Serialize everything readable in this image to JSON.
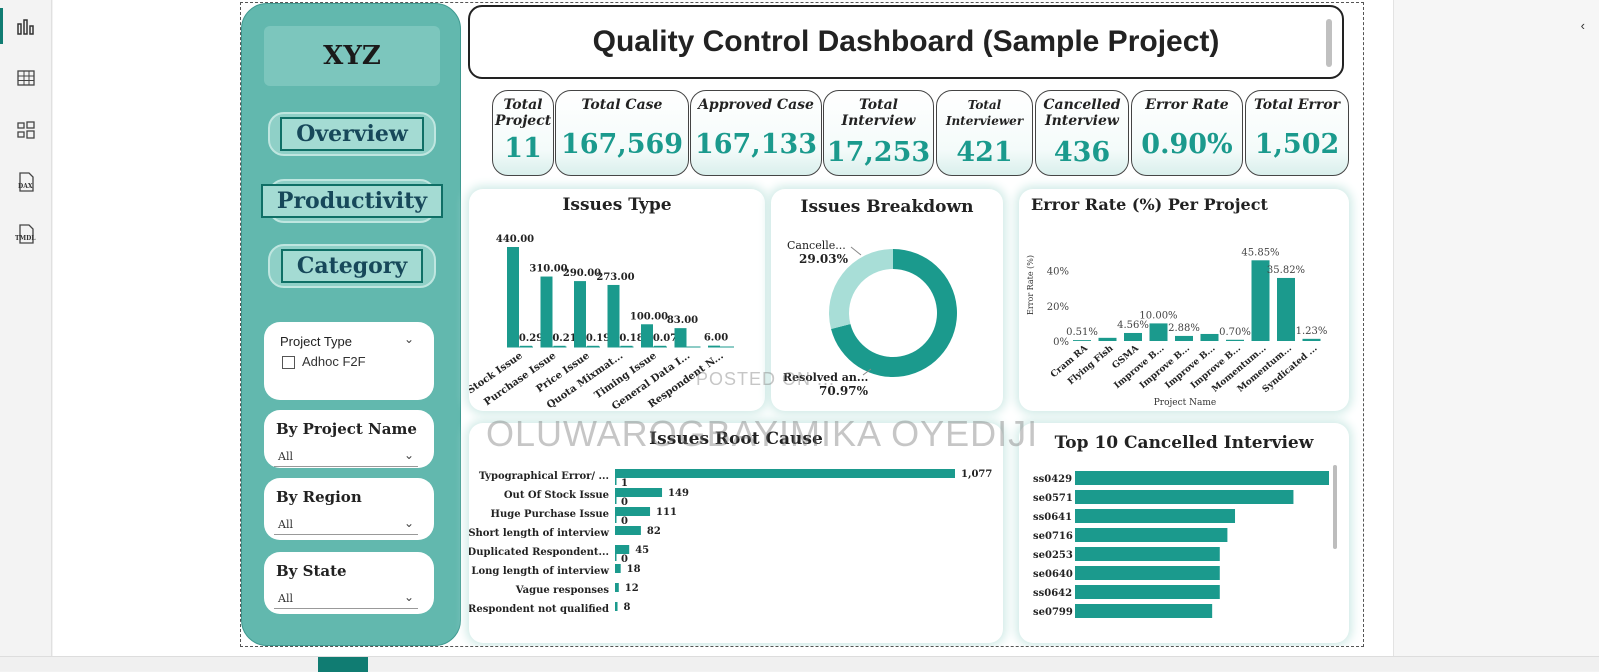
{
  "report": {
    "logo": "XYZ",
    "title": "Quality Control Dashboard (Sample Project)"
  },
  "nav": [
    {
      "label": "Overview"
    },
    {
      "label": "Productivity"
    },
    {
      "label": "Category"
    }
  ],
  "slicers": {
    "project_type": {
      "title": "Project Type",
      "option": "Adhoc F2F"
    },
    "project_name": {
      "title": "By Project Name",
      "value": "All"
    },
    "region": {
      "title": "By Region",
      "value": "All"
    },
    "state": {
      "title": "By State",
      "value": "All"
    }
  },
  "kpis": [
    {
      "label": "Total Project",
      "value": "11"
    },
    {
      "label": "Total Case",
      "value": "167,569"
    },
    {
      "label": "Approved Case",
      "value": "167,133"
    },
    {
      "label": "Total Interview",
      "value": "17,253"
    },
    {
      "label": "Total Interviewer",
      "value": "421"
    },
    {
      "label": "Cancelled Interview",
      "value": "436"
    },
    {
      "label": "Error Rate",
      "value": "0.90%"
    },
    {
      "label": "Total Error",
      "value": "1,502"
    }
  ],
  "watermark": {
    "small": "POSTED ON ...",
    "big": "OLUWAROGBAYIMIKA OYEDIJI"
  },
  "colors": {
    "teal": "#1b9a8d",
    "teal_light": "#a8ded7",
    "panel": "#62b8ae"
  },
  "chart_data": [
    {
      "id": "issues_type",
      "type": "bar",
      "title": "Issues Type",
      "categories": [
        "Stock Issue",
        "Purchase Issue",
        "Price Issue",
        "Quota Mixmat...",
        "Timing Issue",
        "General Data I...",
        "Respondent N..."
      ],
      "series": [
        {
          "values": [
            440.0,
            310.0,
            290.0,
            273.0,
            100.0,
            83.0,
            6.0
          ],
          "labels": [
            "440.00",
            "310.00",
            "290.00",
            "273.00",
            "100.00",
            "83.00",
            "6.00"
          ]
        },
        {
          "values": [
            0.29,
            0.21,
            0.19,
            0.18,
            0.07,
            null,
            null
          ],
          "labels": [
            "0.29",
            "0.21",
            "0.19",
            "0.18",
            "0.07",
            "",
            ""
          ]
        }
      ],
      "ylim": [
        0,
        440
      ]
    },
    {
      "id": "issues_breakdown",
      "type": "pie",
      "title": "Issues Breakdown",
      "slices": [
        {
          "name": "Resolved an...",
          "value": 70.97,
          "label": "70.97%"
        },
        {
          "name": "Cancelle...",
          "value": 29.03,
          "label": "29.03%"
        }
      ]
    },
    {
      "id": "error_rate_per_project",
      "type": "bar",
      "title": "Error Rate (%) Per Project",
      "xlabel": "Project Name",
      "ylabel": "Error Rate (%)",
      "categories": [
        "Cram RA",
        "Flying Fish",
        "GSMA",
        "Improve B...",
        "Improve B...",
        "Improve B...",
        "Improve B...",
        "Momentum...",
        "Momentum...",
        "Syndicated ..."
      ],
      "values": [
        0.51,
        1.8,
        4.56,
        10.0,
        2.88,
        4.0,
        0.7,
        45.85,
        35.82,
        1.23
      ],
      "labels": [
        "0.51%",
        "",
        "4.56%",
        "10.00%",
        "2.88%",
        "",
        "0.70%",
        "45.85%",
        "35.82%",
        "1.23%"
      ],
      "yticks": [
        "0%",
        "20%",
        "40%"
      ],
      "ylim": [
        0,
        50
      ]
    },
    {
      "id": "issues_root_cause",
      "type": "bar",
      "orientation": "horizontal",
      "title": "Issues Root Cause",
      "categories": [
        "Typographical Error/ ...",
        "Out Of Stock Issue",
        "Huge Purchase Issue",
        "Short length of interview",
        "Duplicated Respondent...",
        "Long length of interview",
        "Vague responses",
        "Respondent not qualified"
      ],
      "series": [
        {
          "values": [
            1077,
            149,
            111,
            82,
            45,
            18,
            12,
            8
          ],
          "labels": [
            "1,077",
            "149",
            "111",
            "82",
            "45",
            "18",
            "12",
            "8"
          ]
        },
        {
          "values": [
            1,
            0,
            0,
            null,
            0,
            null,
            null,
            null
          ],
          "labels": [
            "1",
            "0",
            "0",
            "",
            "0",
            "",
            "",
            ""
          ]
        }
      ],
      "xlim": [
        0,
        1077
      ]
    },
    {
      "id": "top10_cancelled",
      "type": "bar",
      "orientation": "horizontal",
      "title": "Top 10 Cancelled Interview",
      "categories": [
        "ss0429",
        "se0571",
        "ss0641",
        "se0716",
        "se0253",
        "se0640",
        "ss0642",
        "se0799"
      ],
      "values": [
        100,
        86,
        63,
        60,
        57,
        57,
        57,
        54
      ],
      "xlim": [
        0,
        100
      ]
    }
  ]
}
